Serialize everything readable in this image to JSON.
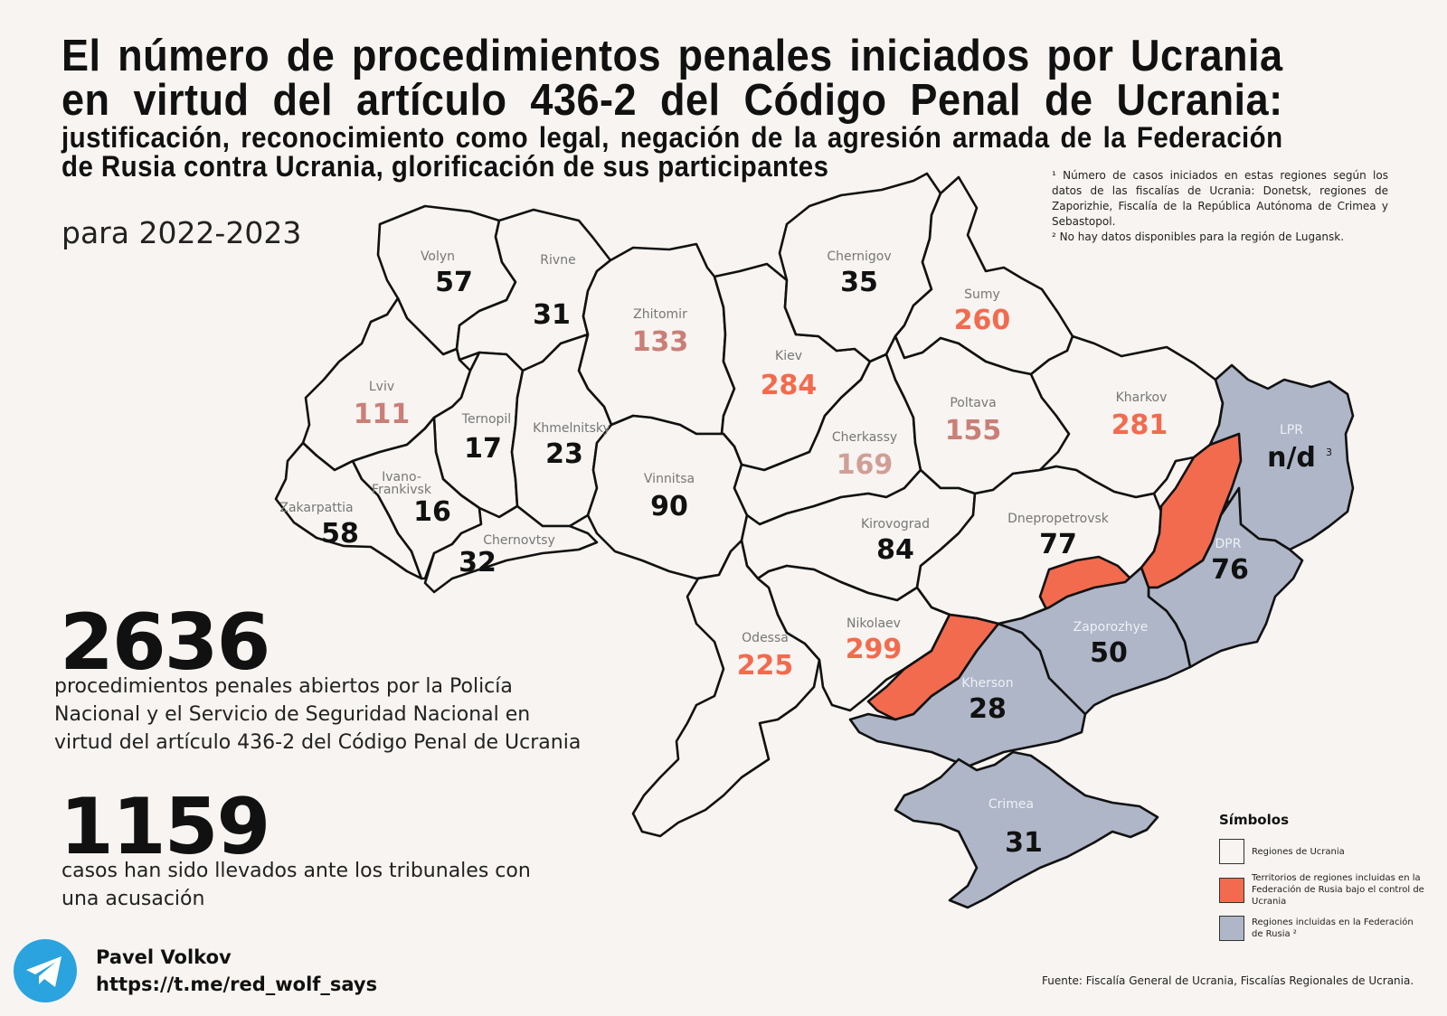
{
  "title": {
    "main": "El número de procedimientos penales iniciados por Ucrania en virtud del artículo 436-2 del Código Penal de Ucrania:",
    "rest": "justificación, reconocimiento como legal, negación de la agresión armada de la Federación de Rusia contra Ucrania, glorificación de sus participantes"
  },
  "period": "para 2022-2023",
  "footnotes": {
    "note1": "¹ Número de casos iniciados en estas regiones según los datos de las fiscalías de Ucrania: Donetsk, regiones de Zaporizhie, Fiscalía de la República Autónoma de Crimea y Sebastopol.",
    "note2": "² No hay datos disponibles para la región de Lugansk."
  },
  "stats": {
    "total_number": "2636",
    "total_desc": "procedimientos penales abiertos por la Policía Nacional y el Servicio de Seguridad Nacional en virtud del artículo 436-2 del Código Penal de Ucrania",
    "court_number": "1159",
    "court_desc": "casos han sido llevados ante los tribunales con una acusación"
  },
  "regions": {
    "volyn": {
      "name": "Volyn",
      "value": "57"
    },
    "rivne": {
      "name": "Rivne",
      "value": "31"
    },
    "zhitomir": {
      "name": "Zhitomir",
      "value": "133"
    },
    "kiev": {
      "name": "Kiev",
      "value": "284"
    },
    "chernigov": {
      "name": "Chernigov",
      "value": "35"
    },
    "sumy": {
      "name": "Sumy",
      "value": "260"
    },
    "lviv": {
      "name": "Lviv",
      "value": "111"
    },
    "ternopil": {
      "name": "Ternopil",
      "value": "17"
    },
    "khmelnitsky": {
      "name": "Khmelnitsky",
      "value": "23"
    },
    "vinnitsa": {
      "name": "Vinnitsa",
      "value": "90"
    },
    "cherkassy": {
      "name": "Cherkassy",
      "value": "169"
    },
    "poltava": {
      "name": "Poltava",
      "value": "155"
    },
    "kharkov": {
      "name": "Kharkov",
      "value": "281"
    },
    "lpr": {
      "name": "LPR",
      "value": "n/d",
      "note": "3"
    },
    "zakarpattia": {
      "name": "Zakarpattia",
      "value": "58"
    },
    "ivano": {
      "name1": "Ivano-",
      "name2": "Frankivsk",
      "value": "16"
    },
    "chernovtsy": {
      "name": "Chernovtsy",
      "value": "32"
    },
    "kirovograd": {
      "name": "Kirovograd",
      "value": "84"
    },
    "dnepro": {
      "name": "Dnepropetrovsk",
      "value": "77"
    },
    "dpr": {
      "name": "DPR",
      "value": "76"
    },
    "odessa": {
      "name": "Odessa",
      "value": "225"
    },
    "nikolaev": {
      "name": "Nikolaev",
      "value": "299"
    },
    "zaporozhye": {
      "name": "Zaporozhye",
      "value": "50"
    },
    "kherson": {
      "name": "Kherson",
      "value": "28"
    },
    "crimea": {
      "name": "Crimea",
      "value": "31"
    }
  },
  "legend": {
    "title": "Símbolos",
    "items": [
      {
        "label": "Regiones de Ucrania",
        "color": "#f7f4f1"
      },
      {
        "label": "Territorios de regiones incluidas en la Federación de Rusia bajo el control de Ucrania",
        "color": "#f26b4e"
      },
      {
        "label": "Regiones incluidas en la Federación de Rusia ²",
        "color": "#aeb6c7"
      }
    ]
  },
  "author": {
    "name": "Pavel Volkov",
    "link": "https://t.me/red_wolf_says",
    "icon": "telegram-icon"
  },
  "source": "Fuente: Fiscalía General de Ucrania, Fiscalías Regionales de Ucrania.",
  "colors": {
    "background": "#f7f4f1",
    "high_value": "#f26b4e",
    "mid_value": "#c97f77",
    "low_mid_value": "#cf9f97",
    "russia_region": "#aeb6c7",
    "telegram": "#2aa3de"
  }
}
